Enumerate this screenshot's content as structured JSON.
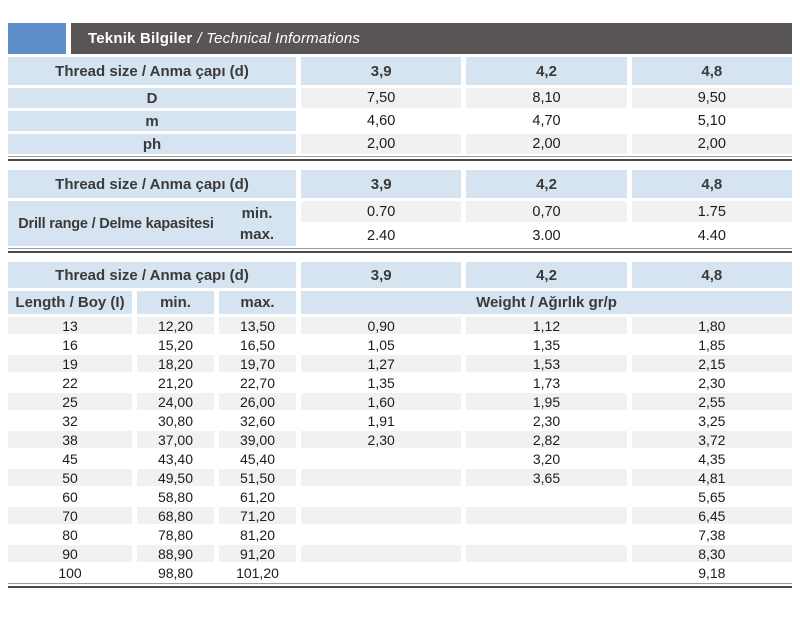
{
  "page": {
    "title_bold": "Teknik Bilgiler",
    "title_italic": "/ Technical Informations"
  },
  "colors": {
    "accent_blue": "#5e8ec9",
    "title_bar": "#595555",
    "header_cell_blue": "#d6e4f2",
    "row_shade": "#f1f1f1",
    "rule_dark": "#4a4a4a"
  },
  "table1": {
    "header": [
      "Thread size / Anma çapı (d)",
      "3,9",
      "4,2",
      "4,8"
    ],
    "rows": [
      {
        "label": "D",
        "values": [
          "7,50",
          "8,10",
          "9,50"
        ]
      },
      {
        "label": "m",
        "values": [
          "4,60",
          "4,70",
          "5,10"
        ]
      },
      {
        "label": "ph",
        "values": [
          "2,00",
          "2,00",
          "2,00"
        ]
      }
    ]
  },
  "table2": {
    "header": [
      "Thread size / Anma çapı (d)",
      "3,9",
      "4,2",
      "4,8"
    ],
    "row_label": "Drill range / Delme kapasitesi",
    "min_label": "min.",
    "max_label": "max.",
    "min_values": [
      "0.70",
      "0,70",
      "1.75"
    ],
    "max_values": [
      "2.40",
      "3.00",
      "4.40"
    ]
  },
  "table3": {
    "header_row1": [
      "Thread size / Anma çapı (d)",
      "3,9",
      "4,2",
      "4,8"
    ],
    "header_row2": {
      "length": "Length / Boy (I)",
      "min": "min.",
      "max": "max.",
      "weight": "Weight / Ağırlık gr/p"
    },
    "rows": [
      [
        "13",
        "12,20",
        "13,50",
        "0,90",
        "1,12",
        "1,80"
      ],
      [
        "16",
        "15,20",
        "16,50",
        "1,05",
        "1,35",
        "1,85"
      ],
      [
        "19",
        "18,20",
        "19,70",
        "1,27",
        "1,53",
        "2,15"
      ],
      [
        "22",
        "21,20",
        "22,70",
        "1,35",
        "1,73",
        "2,30"
      ],
      [
        "25",
        "24,00",
        "26,00",
        "1,60",
        "1,95",
        "2,55"
      ],
      [
        "32",
        "30,80",
        "32,60",
        "1,91",
        "2,30",
        "3,25"
      ],
      [
        "38",
        "37,00",
        "39,00",
        "2,30",
        "2,82",
        "3,72"
      ],
      [
        "45",
        "43,40",
        "45,40",
        "",
        "3,20",
        "4,35"
      ],
      [
        "50",
        "49,50",
        "51,50",
        "",
        "3,65",
        "4,81"
      ],
      [
        "60",
        "58,80",
        "61,20",
        "",
        "",
        "5,65"
      ],
      [
        "70",
        "68,80",
        "71,20",
        "",
        "",
        "6,45"
      ],
      [
        "80",
        "78,80",
        "81,20",
        "",
        "",
        "7,38"
      ],
      [
        "90",
        "88,90",
        "91,20",
        "",
        "",
        "8,30"
      ],
      [
        "100",
        "98,80",
        "101,20",
        "",
        "",
        "9,18"
      ]
    ]
  }
}
